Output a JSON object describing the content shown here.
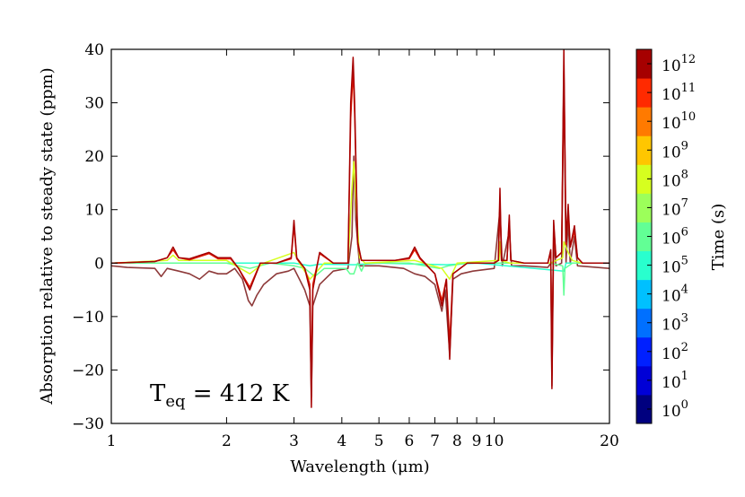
{
  "chart_data": {
    "type": "line",
    "xlabel": "Wavelength (μm)",
    "ylabel": "Absorption relative to steady state (ppm)",
    "xscale": "log",
    "xlim": [
      1,
      20
    ],
    "ylim": [
      -30,
      40
    ],
    "xticks": [
      {
        "value": 1,
        "label": "1"
      },
      {
        "value": 2,
        "label": "2"
      },
      {
        "value": 3,
        "label": "3"
      },
      {
        "value": 4,
        "label": "4"
      },
      {
        "value": 5,
        "label": "5"
      },
      {
        "value": 6,
        "label": "6"
      },
      {
        "value": 7,
        "label": "7"
      },
      {
        "value": 8,
        "label": "8"
      },
      {
        "value": 9,
        "label": "9"
      },
      {
        "value": 10,
        "label": "10"
      },
      {
        "value": 20,
        "label": "20"
      }
    ],
    "yticks": [
      {
        "value": 40,
        "label": "40"
      },
      {
        "value": 30,
        "label": "30"
      },
      {
        "value": 20,
        "label": "20"
      },
      {
        "value": 10,
        "label": "10"
      },
      {
        "value": 0,
        "label": "0"
      },
      {
        "value": -10,
        "label": "−10"
      },
      {
        "value": -20,
        "label": "−20"
      },
      {
        "value": -30,
        "label": "−30"
      }
    ],
    "annotation": {
      "main": "T",
      "sub": "eq",
      "rest": " = 412 K"
    },
    "colorbar": {
      "label": "Time (s)",
      "scale": "log",
      "range_exponent": [
        0,
        12
      ],
      "tick_base": "10",
      "ticks": [
        "0",
        "1",
        "2",
        "3",
        "4",
        "5",
        "6",
        "7",
        "8",
        "9",
        "10",
        "11",
        "12"
      ],
      "colormap": "jet",
      "colors": [
        "#00007f",
        "#0000d6",
        "#0020ff",
        "#0070ff",
        "#00c0ff",
        "#29ffce",
        "#62ff95",
        "#9cff5a",
        "#d6ff1f",
        "#ffc600",
        "#ff7a00",
        "#ff2a00",
        "#a60000"
      ]
    },
    "series": [
      {
        "name": "t = 1e12 s",
        "color": "#a60000",
        "points": [
          [
            1,
            0
          ],
          [
            1.3,
            0.3
          ],
          [
            1.4,
            1
          ],
          [
            1.45,
            3
          ],
          [
            1.5,
            1
          ],
          [
            1.6,
            0.8
          ],
          [
            1.8,
            2
          ],
          [
            1.9,
            1
          ],
          [
            2.05,
            1
          ],
          [
            2.15,
            -1
          ],
          [
            2.3,
            -5
          ],
          [
            2.45,
            0
          ],
          [
            2.7,
            0
          ],
          [
            2.95,
            1
          ],
          [
            3.0,
            8
          ],
          [
            3.05,
            1
          ],
          [
            3.2,
            -1
          ],
          [
            3.3,
            -5
          ],
          [
            3.33,
            -27
          ],
          [
            3.36,
            -5
          ],
          [
            3.5,
            2
          ],
          [
            3.8,
            0
          ],
          [
            4.15,
            0
          ],
          [
            4.22,
            30
          ],
          [
            4.28,
            38.5
          ],
          [
            4.32,
            30
          ],
          [
            4.4,
            4
          ],
          [
            4.5,
            0.5
          ],
          [
            5.5,
            0.5
          ],
          [
            6.0,
            1
          ],
          [
            6.2,
            3
          ],
          [
            6.4,
            1
          ],
          [
            7.0,
            -2
          ],
          [
            7.3,
            -8
          ],
          [
            7.5,
            -3
          ],
          [
            7.65,
            -18
          ],
          [
            7.8,
            -2
          ],
          [
            8.5,
            0
          ],
          [
            10.0,
            0
          ],
          [
            10.25,
            0.5
          ],
          [
            10.35,
            14
          ],
          [
            10.45,
            0.5
          ],
          [
            10.8,
            0.5
          ],
          [
            10.95,
            9
          ],
          [
            11.05,
            0.5
          ],
          [
            12,
            0
          ],
          [
            13.8,
            0
          ],
          [
            14.05,
            2.5
          ],
          [
            14.15,
            -23.5
          ],
          [
            14.3,
            8
          ],
          [
            14.5,
            1
          ],
          [
            15.0,
            2
          ],
          [
            15.2,
            40
          ],
          [
            15.4,
            4
          ],
          [
            15.6,
            11
          ],
          [
            15.8,
            3
          ],
          [
            16.2,
            7
          ],
          [
            16.5,
            1
          ],
          [
            17,
            0
          ],
          [
            20,
            0
          ]
        ]
      },
      {
        "name": "t = 1e11 s",
        "color": "#e41a00",
        "points": [
          [
            1,
            0
          ],
          [
            1.3,
            0.3
          ],
          [
            1.4,
            1
          ],
          [
            1.45,
            2.5
          ],
          [
            1.5,
            1
          ],
          [
            1.6,
            0.6
          ],
          [
            1.8,
            1.8
          ],
          [
            1.9,
            0.8
          ],
          [
            2.05,
            0.8
          ],
          [
            2.15,
            -1
          ],
          [
            2.3,
            -4.5
          ],
          [
            2.45,
            0
          ],
          [
            2.7,
            0
          ],
          [
            2.95,
            0.8
          ],
          [
            3.0,
            7
          ],
          [
            3.05,
            0.8
          ],
          [
            3.2,
            -1
          ],
          [
            3.3,
            -4
          ],
          [
            3.33,
            -24
          ],
          [
            3.36,
            -4
          ],
          [
            3.5,
            1.8
          ],
          [
            3.8,
            0
          ],
          [
            4.15,
            0
          ],
          [
            4.22,
            27
          ],
          [
            4.28,
            36
          ],
          [
            4.32,
            28
          ],
          [
            4.4,
            3.5
          ],
          [
            4.5,
            0.5
          ],
          [
            5.5,
            0.5
          ],
          [
            6.0,
            0.8
          ],
          [
            6.2,
            2.5
          ],
          [
            6.4,
            0.8
          ],
          [
            7.0,
            -2
          ],
          [
            7.3,
            -7
          ],
          [
            7.5,
            -3
          ],
          [
            7.65,
            -15
          ],
          [
            7.8,
            -2
          ],
          [
            8.5,
            0
          ],
          [
            10.0,
            0
          ],
          [
            10.25,
            0.5
          ],
          [
            10.35,
            12
          ],
          [
            10.45,
            0.5
          ],
          [
            10.8,
            0.5
          ],
          [
            10.95,
            8
          ],
          [
            11.05,
            0.5
          ],
          [
            12,
            0
          ],
          [
            13.8,
            0
          ],
          [
            14.05,
            2
          ],
          [
            14.15,
            -21
          ],
          [
            14.3,
            7
          ],
          [
            14.5,
            1
          ],
          [
            15.0,
            2
          ],
          [
            15.2,
            36
          ],
          [
            15.4,
            3.5
          ],
          [
            15.6,
            10
          ],
          [
            15.8,
            3
          ],
          [
            16.2,
            6
          ],
          [
            16.5,
            1
          ],
          [
            17,
            0
          ],
          [
            20,
            0
          ]
        ]
      },
      {
        "name": "t = 1e8 s",
        "color": "#d6ff1f",
        "points": [
          [
            1,
            0
          ],
          [
            1.4,
            0.5
          ],
          [
            1.45,
            1.5
          ],
          [
            1.5,
            0.5
          ],
          [
            2.0,
            0.5
          ],
          [
            2.3,
            -2
          ],
          [
            2.5,
            0
          ],
          [
            3.0,
            2
          ],
          [
            3.1,
            0
          ],
          [
            3.3,
            -3
          ],
          [
            3.4,
            -2
          ],
          [
            3.6,
            0
          ],
          [
            4.15,
            0
          ],
          [
            4.25,
            14
          ],
          [
            4.3,
            19
          ],
          [
            4.35,
            12
          ],
          [
            4.45,
            1
          ],
          [
            4.6,
            0
          ],
          [
            6.2,
            0.5
          ],
          [
            7.3,
            -1
          ],
          [
            7.65,
            -3
          ],
          [
            8.0,
            0
          ],
          [
            10.3,
            0.5
          ],
          [
            10.35,
            4
          ],
          [
            10.45,
            0.5
          ],
          [
            11,
            0
          ],
          [
            14,
            0
          ],
          [
            15.1,
            1
          ],
          [
            15.2,
            4
          ],
          [
            15.6,
            2
          ],
          [
            16,
            0.5
          ],
          [
            17,
            0
          ],
          [
            20,
            0
          ]
        ]
      },
      {
        "name": "t = 1e6 s",
        "color": "#62ff95",
        "points": [
          [
            1,
            0
          ],
          [
            1.5,
            0
          ],
          [
            2.0,
            0
          ],
          [
            2.3,
            -1
          ],
          [
            2.6,
            0
          ],
          [
            3.0,
            -0.5
          ],
          [
            3.2,
            -1
          ],
          [
            3.4,
            -2.5
          ],
          [
            3.6,
            -1
          ],
          [
            4.1,
            -1
          ],
          [
            4.2,
            -2
          ],
          [
            4.3,
            -2
          ],
          [
            4.4,
            0
          ],
          [
            4.5,
            -1.5
          ],
          [
            4.6,
            0
          ],
          [
            6.0,
            0
          ],
          [
            7.2,
            -1
          ],
          [
            7.6,
            -0.5
          ],
          [
            8.5,
            0
          ],
          [
            14,
            0
          ],
          [
            15.1,
            -0.5
          ],
          [
            15.2,
            -6
          ],
          [
            15.3,
            -1
          ],
          [
            16,
            0
          ],
          [
            20,
            0
          ]
        ]
      },
      {
        "name": "t = 1e4 s",
        "color": "#29ffce",
        "points": [
          [
            1,
            0
          ],
          [
            2.0,
            0
          ],
          [
            3.0,
            0
          ],
          [
            3.3,
            -0.5
          ],
          [
            3.5,
            -0.2
          ],
          [
            4.3,
            -0.3
          ],
          [
            5,
            0
          ],
          [
            7.5,
            -0.3
          ],
          [
            9,
            0
          ],
          [
            15.2,
            -1.5
          ],
          [
            15.4,
            0
          ],
          [
            20,
            0
          ]
        ]
      },
      {
        "name": "envelope",
        "color": "#8e3a3a",
        "points": [
          [
            1,
            -0.5
          ],
          [
            1.1,
            -0.8
          ],
          [
            1.3,
            -1
          ],
          [
            1.35,
            -2.5
          ],
          [
            1.4,
            -1
          ],
          [
            1.5,
            -1.5
          ],
          [
            1.6,
            -2
          ],
          [
            1.7,
            -3
          ],
          [
            1.8,
            -1.5
          ],
          [
            1.9,
            -2
          ],
          [
            2.0,
            -2
          ],
          [
            2.1,
            -1
          ],
          [
            2.2,
            -3
          ],
          [
            2.28,
            -7
          ],
          [
            2.33,
            -8
          ],
          [
            2.4,
            -6
          ],
          [
            2.5,
            -4
          ],
          [
            2.7,
            -2
          ],
          [
            2.9,
            -1.5
          ],
          [
            3.0,
            -1
          ],
          [
            3.1,
            -3
          ],
          [
            3.2,
            -5
          ],
          [
            3.3,
            -8
          ],
          [
            3.33,
            -25
          ],
          [
            3.36,
            -8
          ],
          [
            3.5,
            -4
          ],
          [
            3.8,
            -1.5
          ],
          [
            4.15,
            -1
          ],
          [
            4.25,
            5
          ],
          [
            4.3,
            20
          ],
          [
            4.35,
            8
          ],
          [
            4.45,
            -0.5
          ],
          [
            5,
            -0.5
          ],
          [
            5.8,
            -1
          ],
          [
            6.2,
            -2
          ],
          [
            6.6,
            -2.5
          ],
          [
            7.0,
            -4
          ],
          [
            7.3,
            -9
          ],
          [
            7.45,
            -5
          ],
          [
            7.65,
            -17
          ],
          [
            7.8,
            -3
          ],
          [
            8.2,
            -2
          ],
          [
            8.8,
            -1.5
          ],
          [
            10.0,
            -1
          ],
          [
            10.35,
            10
          ],
          [
            10.5,
            -0.5
          ],
          [
            10.95,
            6
          ],
          [
            11.1,
            -0.5
          ],
          [
            12,
            -0.5
          ],
          [
            13.8,
            -0.8
          ],
          [
            14.05,
            0
          ],
          [
            14.15,
            -23
          ],
          [
            14.3,
            4
          ],
          [
            14.5,
            -0.5
          ],
          [
            15.0,
            0
          ],
          [
            15.2,
            35
          ],
          [
            15.4,
            0
          ],
          [
            15.6,
            8
          ],
          [
            15.8,
            0
          ],
          [
            16.2,
            5
          ],
          [
            16.5,
            -0.5
          ],
          [
            20,
            -1
          ]
        ]
      }
    ]
  }
}
